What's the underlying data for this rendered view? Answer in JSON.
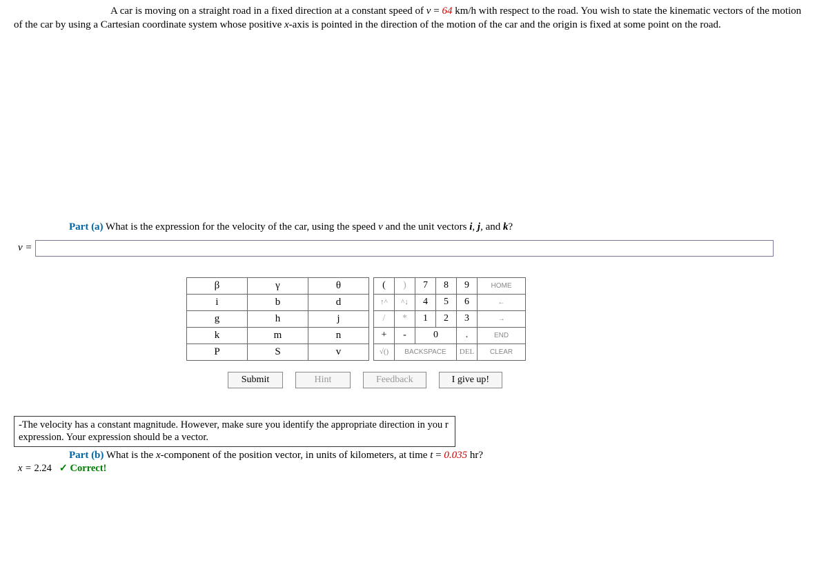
{
  "problem": {
    "prefix": "A car is moving on a straight road in a fixed direction at a constant speed of ",
    "var_v": "v",
    "eq": " = ",
    "speed_val": "64",
    "speed_unit": " km/h with respect to the road. You wish to state the kinematic vectors of the motion of the car by using a Cartesian coordinate system whose positive ",
    "xaxis": "x",
    "tail": "-axis is pointed in the direction of the motion of the car and the origin is fixed at some point on the road."
  },
  "part_a": {
    "label": "Part (a)",
    "question_pre": "  What is the expression for the velocity of the car, using the speed ",
    "v": "v",
    "mid": " and the unit vectors ",
    "i": "i",
    "c1": ", ",
    "j": "j",
    "c2": ", and ",
    "k": "k",
    "q": "?"
  },
  "answer_a": {
    "prefix": "v = ",
    "value": ""
  },
  "keypad_symbols": [
    [
      "β",
      "γ",
      "θ"
    ],
    [
      "i",
      "b",
      "d"
    ],
    [
      "g",
      "h",
      "j"
    ],
    [
      "k",
      "m",
      "n"
    ],
    [
      "P",
      "S",
      "v"
    ]
  ],
  "keypad_nums": {
    "r0": [
      "(",
      ")",
      "7",
      "8",
      "9",
      "HOME"
    ],
    "r1": [
      "↑^",
      "^↓",
      "4",
      "5",
      "6",
      "←"
    ],
    "r2": [
      "/",
      "*",
      "1",
      "2",
      "3",
      "→"
    ],
    "r3": [
      "+",
      "-",
      "0",
      ".",
      "END"
    ],
    "r4": [
      "√()",
      "BACKSPACE",
      "DEL",
      "CLEAR"
    ]
  },
  "actions": {
    "submit": "Submit",
    "hint": "Hint",
    "feedback": "Feedback",
    "giveup": "I give up!"
  },
  "hint_text": "-The velocity has a constant magnitude. However, make sure you identify the appropriate direction in you r expression. Your expression should be a vector.",
  "part_b": {
    "label": "Part (b)",
    "pre": "  What is the ",
    "x": "x",
    "mid": "-component of the position vector, in units of kilometers, at time ",
    "t": "t",
    "eq": " = ",
    "tval": "0.035",
    "tunit": " hr?"
  },
  "answer_b": {
    "prefix": "x = ",
    "value": "2.24",
    "correct": "✓ Correct!"
  }
}
